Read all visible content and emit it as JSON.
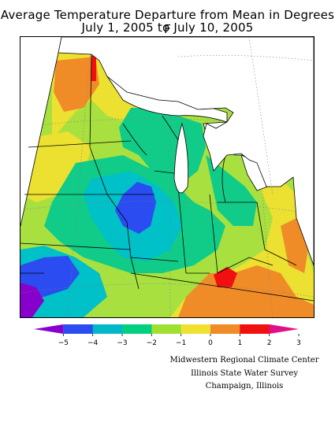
{
  "title": {
    "line1": "Average Temperature Departure from Mean in Degrees F",
    "line2": "July 1, 2005 to July 10, 2005"
  },
  "legend": {
    "tick_labels": [
      "−5",
      "−4",
      "−3",
      "−2",
      "−1",
      "0",
      "1",
      "2",
      "3"
    ],
    "colors": [
      "#8800cc",
      "#2a4cf0",
      "#00b8c8",
      "#00d080",
      "#a0e030",
      "#f0e030",
      "#f08c28",
      "#f01010",
      "#e0108c"
    ]
  },
  "map_colors": {
    "land_base": "#a8e040",
    "water": "#ffffff",
    "deep_blue": "#2a4cf0",
    "cyan": "#00c0c8",
    "teal_green": "#10cc88",
    "green": "#a8e040",
    "yellow": "#ece030",
    "orange": "#f08c28",
    "red": "#f01010",
    "purple": "#8800cc",
    "borders": "#000000",
    "graticule": "#808080"
  },
  "credits": {
    "line1": "Midwestern Regional Climate Center",
    "line2": "Illinois State Water Survey",
    "line3": "Champaign, Illinois"
  }
}
